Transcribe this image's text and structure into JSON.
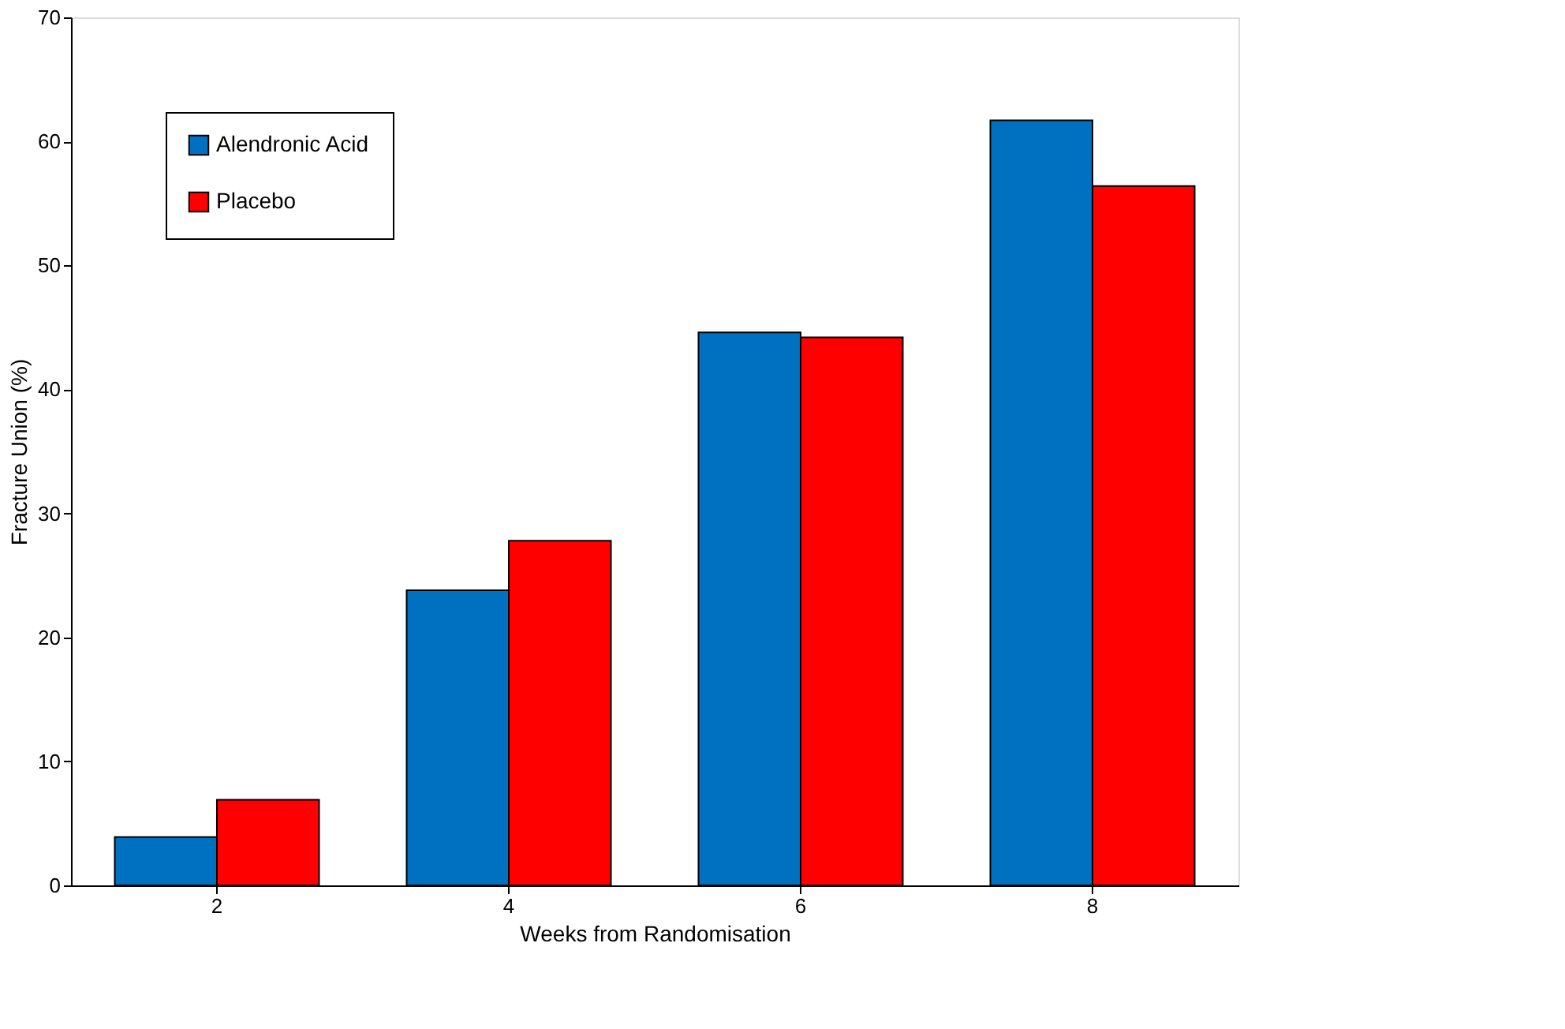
{
  "chart_data": {
    "type": "bar",
    "xlabel": "Weeks from Randomisation",
    "ylabel": "Fracture Union (%)",
    "categories": [
      "2",
      "4",
      "6",
      "8"
    ],
    "series": [
      {
        "name": "Alendronic Acid",
        "color": "#0070c0",
        "values": [
          3.9,
          23.8,
          44.6,
          61.7
        ]
      },
      {
        "name": "Placebo",
        "color": "#ff0000",
        "values": [
          6.9,
          27.8,
          44.2,
          56.4
        ]
      }
    ],
    "ylim": [
      0,
      70
    ],
    "yticks": [
      0,
      10,
      20,
      30,
      40,
      50,
      60,
      70
    ],
    "grid": false,
    "legend": "top left"
  }
}
